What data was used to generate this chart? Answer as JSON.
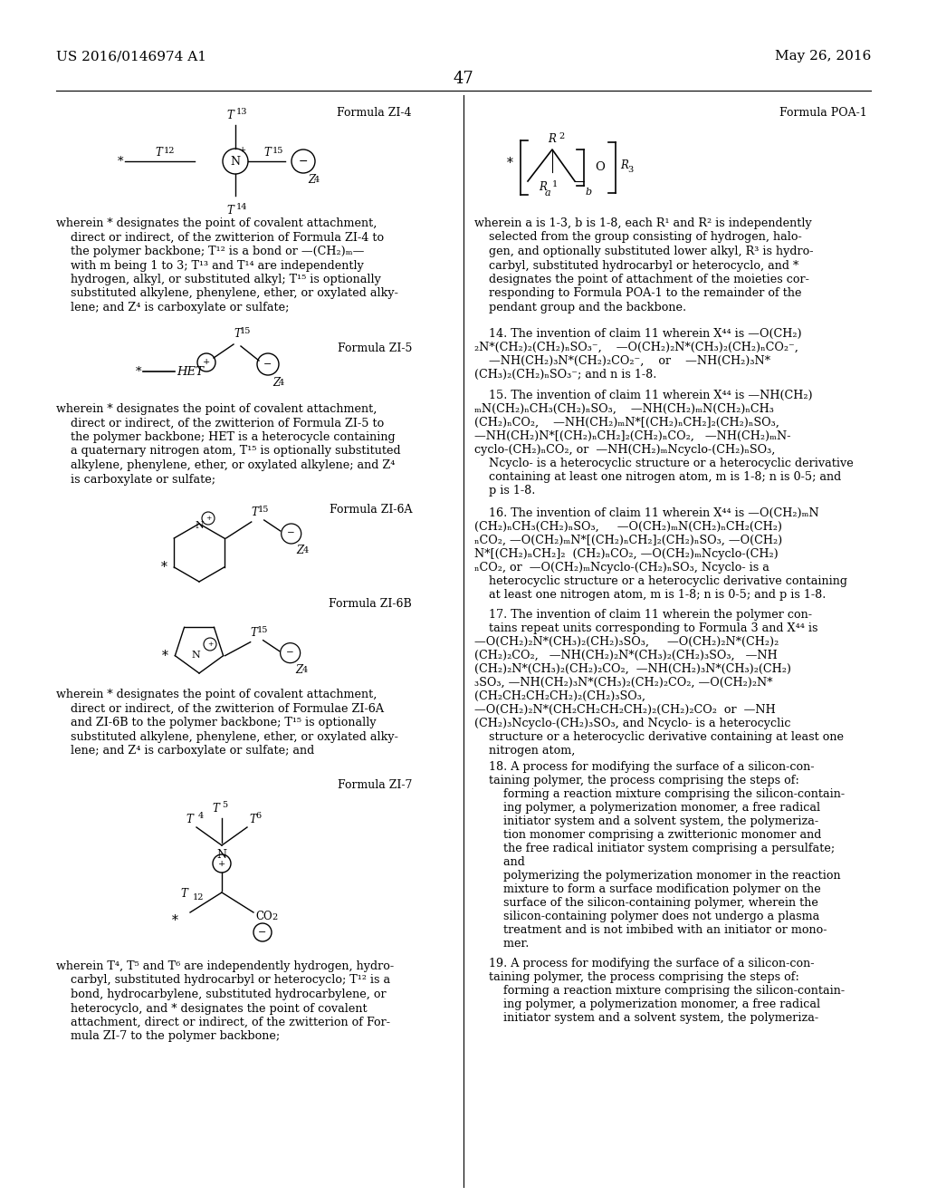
{
  "bg": "#ffffff",
  "header_left": "US 2016/0146974 A1",
  "header_right": "May 26, 2016",
  "page_num": "47"
}
